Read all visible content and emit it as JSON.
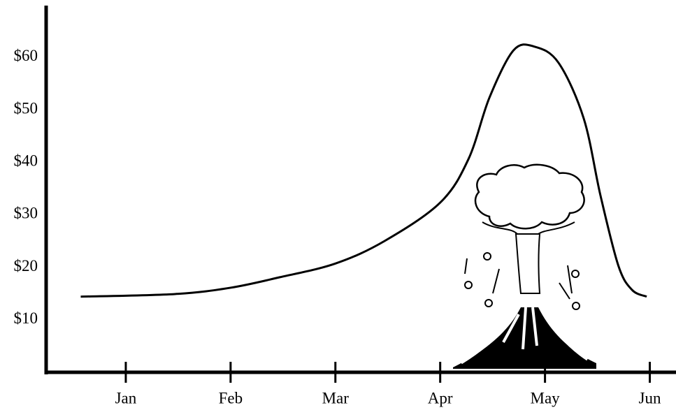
{
  "chart_data": {
    "type": "line",
    "x": [
      0.57,
      1.47,
      2.0,
      2.47,
      3.0,
      3.47,
      4.0,
      4.27,
      4.47,
      4.7,
      4.9,
      5.13,
      5.37,
      5.53,
      5.7,
      5.83,
      5.97
    ],
    "values": [
      14.4,
      14.9,
      16.1,
      18.1,
      20.7,
      25.0,
      32.3,
      40.6,
      52.3,
      61.3,
      62.0,
      58.9,
      48.3,
      33.6,
      20.3,
      15.7,
      14.4
    ],
    "color": "#000000",
    "xlim": [
      0.24,
      6.25
    ],
    "xticks": [
      {
        "value": 1,
        "label": "Jan"
      },
      {
        "value": 2,
        "label": "Feb"
      },
      {
        "value": 3,
        "label": "Mar"
      },
      {
        "value": 4,
        "label": "Apr"
      },
      {
        "value": 5,
        "label": "May"
      },
      {
        "value": 6,
        "label": "Jun"
      }
    ],
    "ylim": [
      0,
      70
    ],
    "yticks": [
      {
        "value": 10,
        "label": "$10"
      },
      {
        "value": 20,
        "label": "$20"
      },
      {
        "value": 30,
        "label": "$30"
      },
      {
        "value": 40,
        "label": "$40"
      },
      {
        "value": 50,
        "label": "$50"
      },
      {
        "value": 60,
        "label": "$60"
      }
    ],
    "grid": false
  }
}
